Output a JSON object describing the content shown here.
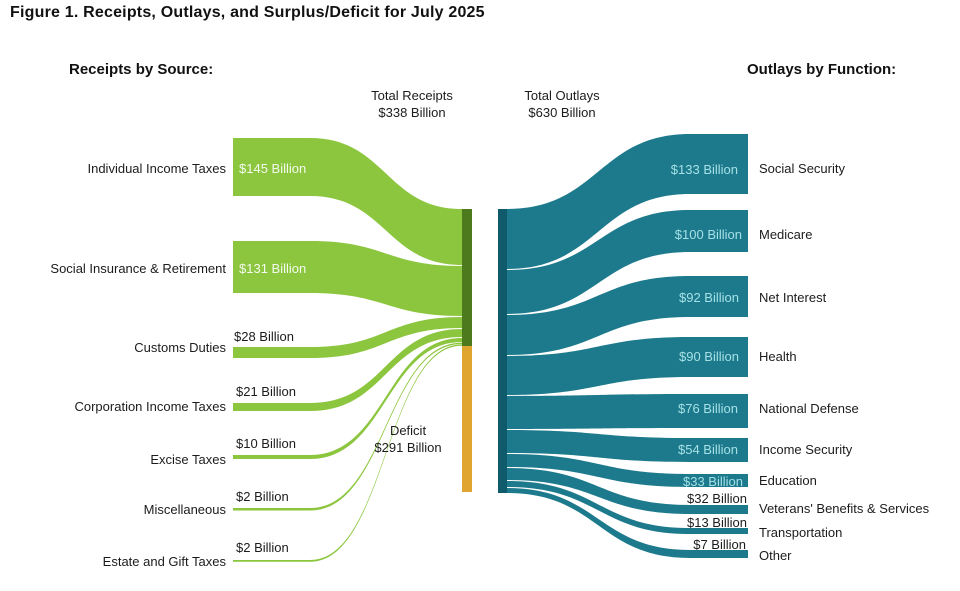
{
  "title": "Figure 1. Receipts, Outlays, and Surplus/Deficit for July 2025",
  "left_heading": "Receipts by Source:",
  "right_heading": "Outlays by Function:",
  "totals": {
    "receipts_label": "Total Receipts",
    "receipts_value": "$338 Billion",
    "outlays_label": "Total Outlays",
    "outlays_value": "$630 Billion",
    "deficit_label": "Deficit",
    "deficit_value": "$291 Billion"
  },
  "colors": {
    "receipt_flow": "#8CC63F",
    "receipt_node": "#4E7A1E",
    "deficit_node": "#E0A52E",
    "outlay_flow": "#1D7A8C",
    "outlay_node": "#0F5A6B",
    "background": "#FFFFFF",
    "text": "#1C1C1C"
  },
  "chart_data": {
    "type": "sankey",
    "title": "Figure 1. Receipts, Outlays, and Surplus/Deficit for July 2025",
    "unit": "USD billions",
    "total_receipts": 338,
    "total_outlays": 630,
    "deficit": 291,
    "receipts": [
      {
        "label": "Individual Income Taxes",
        "value": 145,
        "value_label": "$145 Billion"
      },
      {
        "label": "Social Insurance & Retirement",
        "value": 131,
        "value_label": "$131 Billion"
      },
      {
        "label": "Customs Duties",
        "value": 28,
        "value_label": "$28 Billion"
      },
      {
        "label": "Corporation Income Taxes",
        "value": 21,
        "value_label": "$21 Billion"
      },
      {
        "label": "Excise Taxes",
        "value": 10,
        "value_label": "$10 Billion"
      },
      {
        "label": "Miscellaneous",
        "value": 2,
        "value_label": "$2 Billion"
      },
      {
        "label": "Estate and Gift Taxes",
        "value": 2,
        "value_label": "$2 Billion"
      }
    ],
    "outlays": [
      {
        "label": "Social Security",
        "value": 133,
        "value_label": "$133 Billion"
      },
      {
        "label": "Medicare",
        "value": 100,
        "value_label": "$100 Billion"
      },
      {
        "label": "Net Interest",
        "value": 92,
        "value_label": "$92 Billion"
      },
      {
        "label": "Health",
        "value": 90,
        "value_label": "$90 Billion"
      },
      {
        "label": "National Defense",
        "value": 76,
        "value_label": "$76 Billion"
      },
      {
        "label": "Income Security",
        "value": 54,
        "value_label": "$54 Billion"
      },
      {
        "label": "Education",
        "value": 33,
        "value_label": "$33 Billion"
      },
      {
        "label": "Veterans' Benefits & Services",
        "value": 32,
        "value_label": "$32 Billion"
      },
      {
        "label": "Transportation",
        "value": 13,
        "value_label": "$13 Billion"
      },
      {
        "label": "Other",
        "value": 7,
        "value_label": "$7 Billion"
      }
    ]
  }
}
